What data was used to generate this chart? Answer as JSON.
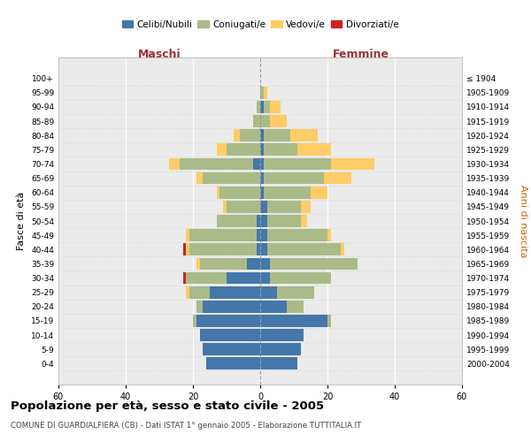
{
  "age_groups": [
    "0-4",
    "5-9",
    "10-14",
    "15-19",
    "20-24",
    "25-29",
    "30-34",
    "35-39",
    "40-44",
    "45-49",
    "50-54",
    "55-59",
    "60-64",
    "65-69",
    "70-74",
    "75-79",
    "80-84",
    "85-89",
    "90-94",
    "95-99",
    "100+"
  ],
  "birth_years": [
    "2000-2004",
    "1995-1999",
    "1990-1994",
    "1985-1989",
    "1980-1984",
    "1975-1979",
    "1970-1974",
    "1965-1969",
    "1960-1964",
    "1955-1959",
    "1950-1954",
    "1945-1949",
    "1940-1944",
    "1935-1939",
    "1930-1934",
    "1925-1929",
    "1920-1924",
    "1915-1919",
    "1910-1914",
    "1905-1909",
    "≤ 1904"
  ],
  "male": {
    "celibi": [
      16,
      17,
      18,
      19,
      17,
      15,
      10,
      4,
      1,
      1,
      1,
      0,
      0,
      0,
      2,
      0,
      0,
      0,
      0,
      0,
      0
    ],
    "coniugati": [
      0,
      0,
      0,
      1,
      2,
      6,
      12,
      14,
      20,
      20,
      12,
      10,
      12,
      17,
      22,
      10,
      6,
      2,
      1,
      0,
      0
    ],
    "vedovi": [
      0,
      0,
      0,
      0,
      0,
      1,
      0,
      1,
      1,
      1,
      0,
      1,
      1,
      2,
      3,
      3,
      2,
      0,
      0,
      0,
      0
    ],
    "divorziati": [
      0,
      0,
      0,
      0,
      0,
      0,
      1,
      0,
      1,
      0,
      0,
      0,
      0,
      0,
      0,
      0,
      0,
      0,
      0,
      0,
      0
    ]
  },
  "female": {
    "nubili": [
      11,
      12,
      13,
      20,
      8,
      5,
      3,
      3,
      2,
      2,
      2,
      2,
      1,
      1,
      1,
      1,
      1,
      0,
      1,
      0,
      0
    ],
    "coniugate": [
      0,
      0,
      0,
      1,
      5,
      11,
      18,
      26,
      22,
      18,
      10,
      10,
      14,
      18,
      20,
      10,
      8,
      3,
      2,
      1,
      0
    ],
    "vedove": [
      0,
      0,
      0,
      0,
      0,
      0,
      0,
      0,
      1,
      1,
      2,
      3,
      5,
      8,
      13,
      10,
      8,
      5,
      3,
      1,
      0
    ],
    "divorziate": [
      0,
      0,
      0,
      0,
      0,
      0,
      0,
      0,
      0,
      0,
      0,
      0,
      0,
      0,
      0,
      0,
      0,
      0,
      0,
      0,
      0
    ]
  },
  "colors": {
    "celibi": "#4477aa",
    "coniugati": "#aabb88",
    "vedovi": "#ffcc66",
    "divorziati": "#cc2222"
  },
  "title": "Popolazione per età, sesso e stato civile - 2005",
  "subtitle": "COMUNE DI GUARDIALFIERA (CB) - Dati ISTAT 1° gennaio 2005 - Elaborazione TUTTITALIA.IT",
  "xlabel_left": "Maschi",
  "xlabel_right": "Femmine",
  "ylabel_left": "Fasce di età",
  "ylabel_right": "Anni di nascita",
  "xlim": 60,
  "bg_color": "#ffffff",
  "plot_bg": "#ebebeb",
  "grid_color": "#ffffff"
}
